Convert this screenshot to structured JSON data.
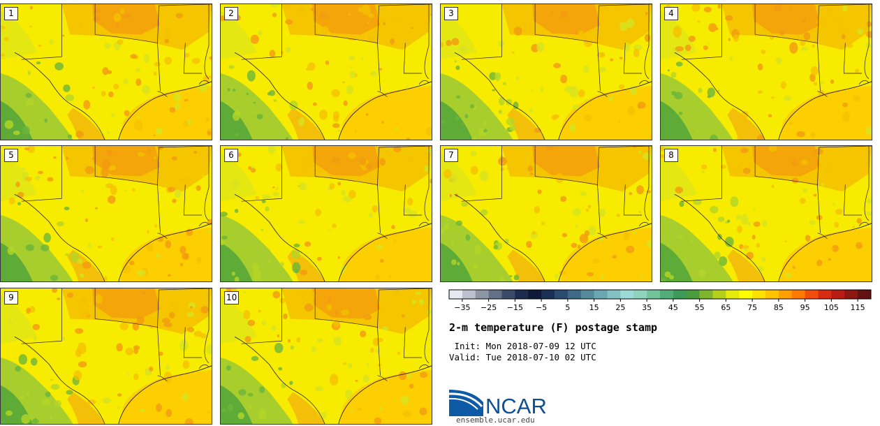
{
  "panels": [
    {
      "label": "1",
      "seed": 11
    },
    {
      "label": "2",
      "seed": 23
    },
    {
      "label": "3",
      "seed": 37
    },
    {
      "label": "4",
      "seed": 41
    },
    {
      "label": "5",
      "seed": 53
    },
    {
      "label": "6",
      "seed": 67
    },
    {
      "label": "7",
      "seed": 71
    },
    {
      "label": "8",
      "seed": 83
    },
    {
      "label": "9",
      "seed": 97
    },
    {
      "label": "10",
      "seed": 101
    }
  ],
  "colorbar": {
    "colors": [
      "#e8e8f0",
      "#bcc0cc",
      "#8e96a6",
      "#637088",
      "#3a4b6a",
      "#1d2b4c",
      "#0f1a3a",
      "#1b2f55",
      "#2b4a6f",
      "#3f6a86",
      "#548a9c",
      "#6ba6b2",
      "#83c0c4",
      "#9ddad6",
      "#8fd3bd",
      "#72c29c",
      "#53ad79",
      "#3d9a58",
      "#4b9c3c",
      "#7db52e",
      "#b4d01c",
      "#e3ea0c",
      "#ffff00",
      "#ffe100",
      "#ffc400",
      "#ffa000",
      "#ff7a00",
      "#f04e0a",
      "#d82c12",
      "#b81c14",
      "#8e1610",
      "#621210"
    ],
    "ticks": [
      "-35",
      "-25",
      "-15",
      "-5",
      "5",
      "15",
      "25",
      "35",
      "45",
      "55",
      "65",
      "75",
      "85",
      "95",
      "105",
      "115"
    ]
  },
  "title": "2-m temperature (F) postage stamp",
  "init_label": " Init: Mon 2018-07-09 12 UTC",
  "valid_label": "Valid: Tue 2018-07-10 02 UTC",
  "logo_text": "NCAR",
  "website": "ensemble.ucar.edu"
}
